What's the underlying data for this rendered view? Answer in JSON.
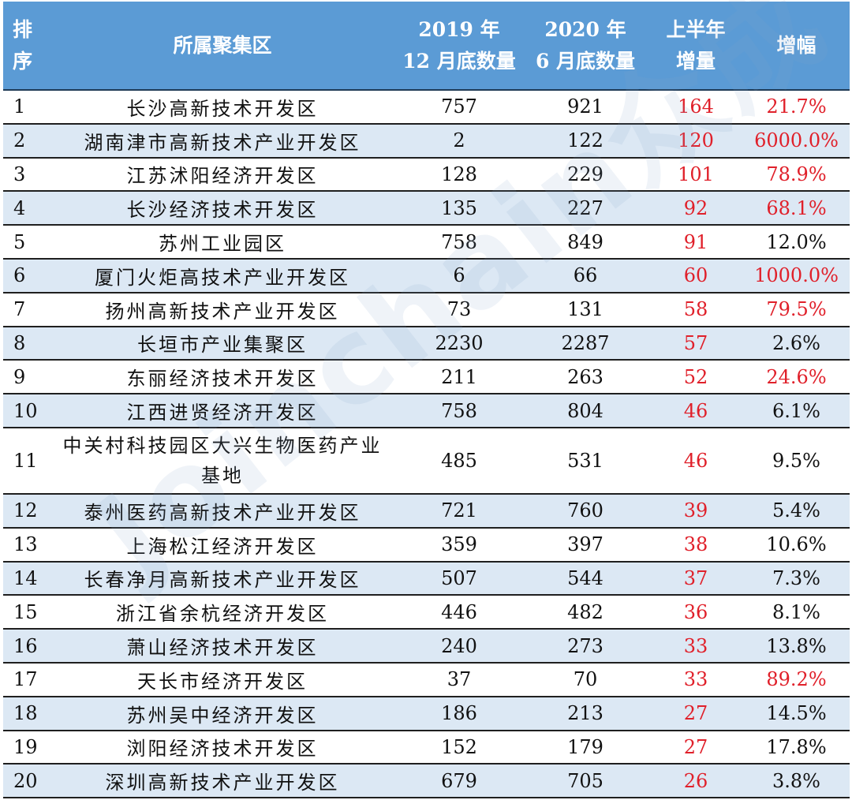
{
  "watermark": "Joinchain众成",
  "colors": {
    "header_bg": "#5b9bd5",
    "row_alt_bg": "#dce8f4",
    "highlight_red": "#e0202a"
  },
  "header": {
    "rank": [
      "排",
      "序"
    ],
    "zone": "所属聚集区",
    "count_2019": [
      "2019 年",
      "12 月底数量"
    ],
    "count_2020": [
      "2020 年",
      "6 月底数量"
    ],
    "increment": [
      "上半年",
      "增量"
    ],
    "growth": "增幅"
  },
  "rows": [
    {
      "rank": "1",
      "zone": "长沙高新技术开发区",
      "count_2019": "757",
      "count_2020": "921",
      "increment": "164",
      "growth": "21.7%",
      "growth_red": true
    },
    {
      "rank": "2",
      "zone": "湖南津市高新技术产业开发区",
      "count_2019": "2",
      "count_2020": "122",
      "increment": "120",
      "growth": "6000.0%",
      "growth_red": true
    },
    {
      "rank": "3",
      "zone": "江苏沭阳经济开发区",
      "count_2019": "128",
      "count_2020": "229",
      "increment": "101",
      "growth": "78.9%",
      "growth_red": true
    },
    {
      "rank": "4",
      "zone": "长沙经济技术开发区",
      "count_2019": "135",
      "count_2020": "227",
      "increment": "92",
      "growth": "68.1%",
      "growth_red": true
    },
    {
      "rank": "5",
      "zone": "苏州工业园区",
      "count_2019": "758",
      "count_2020": "849",
      "increment": "91",
      "growth": "12.0%",
      "growth_red": false
    },
    {
      "rank": "6",
      "zone": "厦门火炬高技术产业开发区",
      "count_2019": "6",
      "count_2020": "66",
      "increment": "60",
      "growth": "1000.0%",
      "growth_red": true
    },
    {
      "rank": "7",
      "zone": "扬州高新技术产业开发区",
      "count_2019": "73",
      "count_2020": "131",
      "increment": "58",
      "growth": "79.5%",
      "growth_red": true
    },
    {
      "rank": "8",
      "zone": "长垣市产业集聚区",
      "count_2019": "2230",
      "count_2020": "2287",
      "increment": "57",
      "growth": "2.6%",
      "growth_red": false
    },
    {
      "rank": "9",
      "zone": "东丽经济技术开发区",
      "count_2019": "211",
      "count_2020": "263",
      "increment": "52",
      "growth": "24.6%",
      "growth_red": true
    },
    {
      "rank": "10",
      "zone": "江西进贤经济开发区",
      "count_2019": "758",
      "count_2020": "804",
      "increment": "46",
      "growth": "6.1%",
      "growth_red": false
    },
    {
      "rank": "11",
      "zone": "中关村科技园区大兴生物医药产业基地",
      "count_2019": "485",
      "count_2020": "531",
      "increment": "46",
      "growth": "9.5%",
      "growth_red": false
    },
    {
      "rank": "12",
      "zone": "泰州医药高新技术产业开发区",
      "count_2019": "721",
      "count_2020": "760",
      "increment": "39",
      "growth": "5.4%",
      "growth_red": false
    },
    {
      "rank": "13",
      "zone": "上海松江经济开发区",
      "count_2019": "359",
      "count_2020": "397",
      "increment": "38",
      "growth": "10.6%",
      "growth_red": false
    },
    {
      "rank": "14",
      "zone": "长春净月高新技术产业开发区",
      "count_2019": "507",
      "count_2020": "544",
      "increment": "37",
      "growth": "7.3%",
      "growth_red": false
    },
    {
      "rank": "15",
      "zone": "浙江省余杭经济开发区",
      "count_2019": "446",
      "count_2020": "482",
      "increment": "36",
      "growth": "8.1%",
      "growth_red": false
    },
    {
      "rank": "16",
      "zone": "萧山经济技术开发区",
      "count_2019": "240",
      "count_2020": "273",
      "increment": "33",
      "growth": "13.8%",
      "growth_red": false
    },
    {
      "rank": "17",
      "zone": "天长市经济开发区",
      "count_2019": "37",
      "count_2020": "70",
      "increment": "33",
      "growth": "89.2%",
      "growth_red": true
    },
    {
      "rank": "18",
      "zone": "苏州吴中经济开发区",
      "count_2019": "186",
      "count_2020": "213",
      "increment": "27",
      "growth": "14.5%",
      "growth_red": false
    },
    {
      "rank": "19",
      "zone": "浏阳经济技术开发区",
      "count_2019": "152",
      "count_2020": "179",
      "increment": "27",
      "growth": "17.8%",
      "growth_red": false
    },
    {
      "rank": "20",
      "zone": "深圳高新技术产业开发区",
      "count_2019": "679",
      "count_2020": "705",
      "increment": "26",
      "growth": "3.8%",
      "growth_red": false
    }
  ]
}
